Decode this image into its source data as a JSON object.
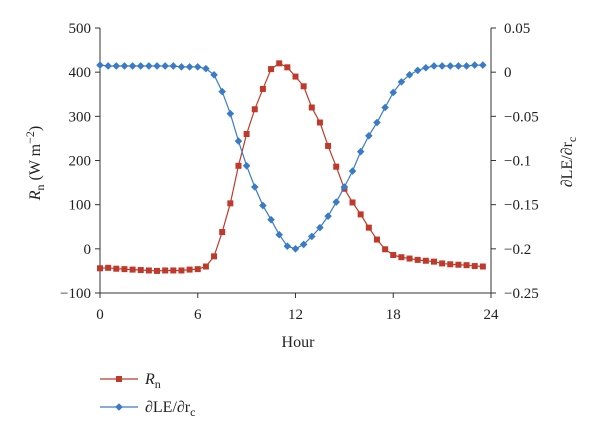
{
  "chart_data": {
    "type": "line",
    "xlabel": "Hour",
    "ylabel_left": {
      "main": "R",
      "sub": "n",
      "unit_prefix": " (W m",
      "unit_sup": "−2",
      "unit_suffix": ")"
    },
    "ylabel_right": {
      "text": "∂LE/∂r",
      "sub": "c"
    },
    "x_ticks": [
      0,
      6,
      12,
      18,
      24
    ],
    "xlim": [
      0,
      24
    ],
    "ylim_left": [
      -100,
      500
    ],
    "ylim_right": [
      -0.25,
      0.05
    ],
    "y_ticks_left": [
      -100,
      0,
      100,
      200,
      300,
      400,
      500
    ],
    "y_ticks_right": [
      {
        "value": -0.25,
        "label": "−0.25"
      },
      {
        "value": -0.2,
        "label": "−0.2"
      },
      {
        "value": -0.15,
        "label": "−0.15"
      },
      {
        "value": -0.1,
        "label": "−0.1"
      },
      {
        "value": -0.05,
        "label": "−0.05"
      },
      {
        "value": 0,
        "label": "0"
      },
      {
        "value": 0.05,
        "label": "0.05"
      }
    ],
    "y_tick_labels_left": [
      "−100",
      "0",
      "100",
      "200",
      "300",
      "400",
      "500"
    ],
    "x": [
      0,
      0.5,
      1,
      1.5,
      2,
      2.5,
      3,
      3.5,
      4,
      4.5,
      5,
      5.5,
      6,
      6.5,
      7,
      7.5,
      8,
      8.5,
      9,
      9.5,
      10,
      10.5,
      11,
      11.5,
      12,
      12.5,
      13,
      13.5,
      14,
      14.5,
      15,
      15.5,
      16,
      16.5,
      17,
      17.5,
      18,
      18.5,
      19,
      19.5,
      20,
      20.5,
      21,
      21.5,
      22,
      22.5,
      23,
      23.5
    ],
    "series": [
      {
        "name": "Rn",
        "legend_main": "R",
        "legend_sub": "n",
        "axis": "left",
        "color": "#c0392b",
        "marker": "square",
        "values": [
          -44,
          -43,
          -45,
          -46,
          -47,
          -48,
          -49,
          -50,
          -49,
          -49,
          -49,
          -47,
          -46,
          -40,
          -17,
          38,
          103,
          188,
          260,
          316,
          362,
          407,
          420,
          411,
          390,
          368,
          320,
          286,
          233,
          186,
          136,
          105,
          78,
          48,
          21,
          -1,
          -14,
          -19,
          -22,
          -25,
          -27,
          -29,
          -33,
          -35,
          -36,
          -37,
          -39,
          -40
        ]
      },
      {
        "name": "∂LE/∂rc",
        "legend_main": "∂LE/∂r",
        "legend_sub": "c",
        "axis": "right",
        "color": "#3a7bc8",
        "marker": "diamond",
        "values": [
          0.008,
          0.007,
          0.007,
          0.007,
          0.007,
          0.007,
          0.007,
          0.007,
          0.007,
          0.007,
          0.006,
          0.006,
          0.006,
          0.004,
          -0.003,
          -0.022,
          -0.047,
          -0.078,
          -0.106,
          -0.13,
          -0.151,
          -0.167,
          -0.184,
          -0.197,
          -0.2,
          -0.195,
          -0.186,
          -0.176,
          -0.163,
          -0.147,
          -0.13,
          -0.112,
          -0.09,
          -0.072,
          -0.057,
          -0.04,
          -0.023,
          -0.011,
          -0.003,
          0.002,
          0.005,
          0.007,
          0.007,
          0.007,
          0.007,
          0.007,
          0.008,
          0.008
        ]
      }
    ],
    "legend_position": "bottom-left"
  }
}
